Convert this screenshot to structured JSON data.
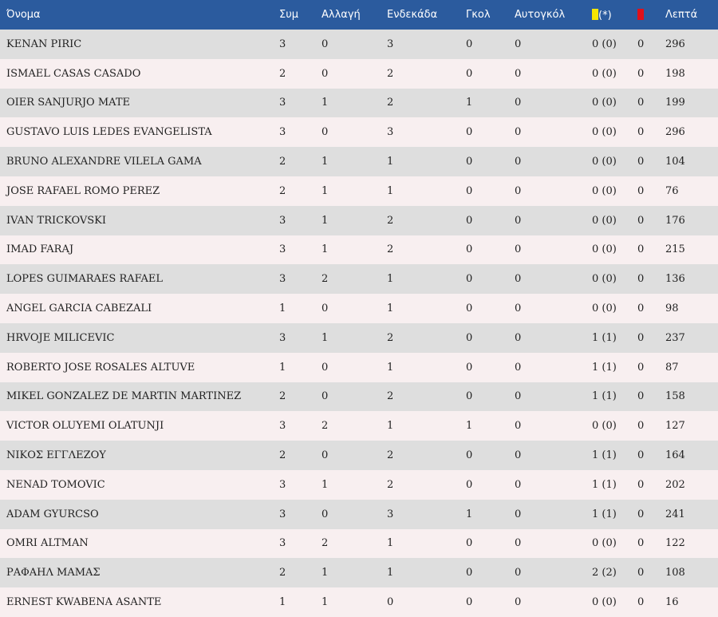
{
  "colors": {
    "header_bg": "#2b5b9e",
    "row_odd": "#dedede",
    "row_even": "#f8eff0",
    "yellow_card": "#f5e600",
    "red_card": "#e0101a"
  },
  "header": {
    "name": "Όνομα",
    "apps": "Συμ",
    "subs": "Αλλαγή",
    "starts": "Ενδεκάδα",
    "goals": "Γκολ",
    "own_goals": "Αυτογκόλ",
    "yellow_suffix": "(*)",
    "minutes": "Λεπτά",
    "yellow_icon": "yellow-card-icon",
    "red_icon": "red-card-icon"
  },
  "rows": [
    {
      "name": "KENAN PIRIC",
      "apps": "3",
      "subs": "0",
      "starts": "3",
      "goals": "0",
      "own": "0",
      "yellow": "0 (0)",
      "red": "0",
      "minutes": "296"
    },
    {
      "name": "ISMAEL CASAS CASADO",
      "apps": "2",
      "subs": "0",
      "starts": "2",
      "goals": "0",
      "own": "0",
      "yellow": "0 (0)",
      "red": "0",
      "minutes": "198"
    },
    {
      "name": "OIER SANJURJO MATE",
      "apps": "3",
      "subs": "1",
      "starts": "2",
      "goals": "1",
      "own": "0",
      "yellow": "0 (0)",
      "red": "0",
      "minutes": "199"
    },
    {
      "name": "GUSTAVO LUIS LEDES EVANGELISTA",
      "apps": "3",
      "subs": "0",
      "starts": "3",
      "goals": "0",
      "own": "0",
      "yellow": "0 (0)",
      "red": "0",
      "minutes": "296"
    },
    {
      "name": "BRUNO ALEXANDRE VILELA GAMA",
      "apps": "2",
      "subs": "1",
      "starts": "1",
      "goals": "0",
      "own": "0",
      "yellow": "0 (0)",
      "red": "0",
      "minutes": "104"
    },
    {
      "name": "JOSE RAFAEL ROMO PEREZ",
      "apps": "2",
      "subs": "1",
      "starts": "1",
      "goals": "0",
      "own": "0",
      "yellow": "0 (0)",
      "red": "0",
      "minutes": "76"
    },
    {
      "name": "IVAN TRICKOVSKI",
      "apps": "3",
      "subs": "1",
      "starts": "2",
      "goals": "0",
      "own": "0",
      "yellow": "0 (0)",
      "red": "0",
      "minutes": "176"
    },
    {
      "name": "IMAD FARAJ",
      "apps": "3",
      "subs": "1",
      "starts": "2",
      "goals": "0",
      "own": "0",
      "yellow": "0 (0)",
      "red": "0",
      "minutes": "215"
    },
    {
      "name": "LOPES GUIMARAES RAFAEL",
      "apps": "3",
      "subs": "2",
      "starts": "1",
      "goals": "0",
      "own": "0",
      "yellow": "0 (0)",
      "red": "0",
      "minutes": "136"
    },
    {
      "name": "ANGEL GARCIA CABEZALI",
      "apps": "1",
      "subs": "0",
      "starts": "1",
      "goals": "0",
      "own": "0",
      "yellow": "0 (0)",
      "red": "0",
      "minutes": "98"
    },
    {
      "name": "HRVOJE MILICEVIC",
      "apps": "3",
      "subs": "1",
      "starts": "2",
      "goals": "0",
      "own": "0",
      "yellow": "1 (1)",
      "red": "0",
      "minutes": "237"
    },
    {
      "name": "ROBERTO JOSE ROSALES ALTUVE",
      "apps": "1",
      "subs": "0",
      "starts": "1",
      "goals": "0",
      "own": "0",
      "yellow": "1 (1)",
      "red": "0",
      "minutes": "87"
    },
    {
      "name": "MIKEL GONZALEZ DE MARTIN MARTINEZ",
      "apps": "2",
      "subs": "0",
      "starts": "2",
      "goals": "0",
      "own": "0",
      "yellow": "1 (1)",
      "red": "0",
      "minutes": "158"
    },
    {
      "name": "VICTOR OLUYEMI OLATUNJI",
      "apps": "3",
      "subs": "2",
      "starts": "1",
      "goals": "1",
      "own": "0",
      "yellow": "0 (0)",
      "red": "0",
      "minutes": "127"
    },
    {
      "name": "ΝΙΚΟΣ ΕΓΓΛΕΖΟΥ",
      "apps": "2",
      "subs": "0",
      "starts": "2",
      "goals": "0",
      "own": "0",
      "yellow": "1 (1)",
      "red": "0",
      "minutes": "164"
    },
    {
      "name": "NENAD TOMOVIC",
      "apps": "3",
      "subs": "1",
      "starts": "2",
      "goals": "0",
      "own": "0",
      "yellow": "1 (1)",
      "red": "0",
      "minutes": "202"
    },
    {
      "name": "ADAM GYURCSO",
      "apps": "3",
      "subs": "0",
      "starts": "3",
      "goals": "1",
      "own": "0",
      "yellow": "1 (1)",
      "red": "0",
      "minutes": "241"
    },
    {
      "name": "OMRI ALTMAN",
      "apps": "3",
      "subs": "2",
      "starts": "1",
      "goals": "0",
      "own": "0",
      "yellow": "0 (0)",
      "red": "0",
      "minutes": "122"
    },
    {
      "name": "ΡΑΦΑΗΛ ΜΑΜΑΣ",
      "apps": "2",
      "subs": "1",
      "starts": "1",
      "goals": "0",
      "own": "0",
      "yellow": "2 (2)",
      "red": "0",
      "minutes": "108"
    },
    {
      "name": "ERNEST KWABENA ASANTE",
      "apps": "1",
      "subs": "1",
      "starts": "0",
      "goals": "0",
      "own": "0",
      "yellow": "0 (0)",
      "red": "0",
      "minutes": "16"
    }
  ]
}
